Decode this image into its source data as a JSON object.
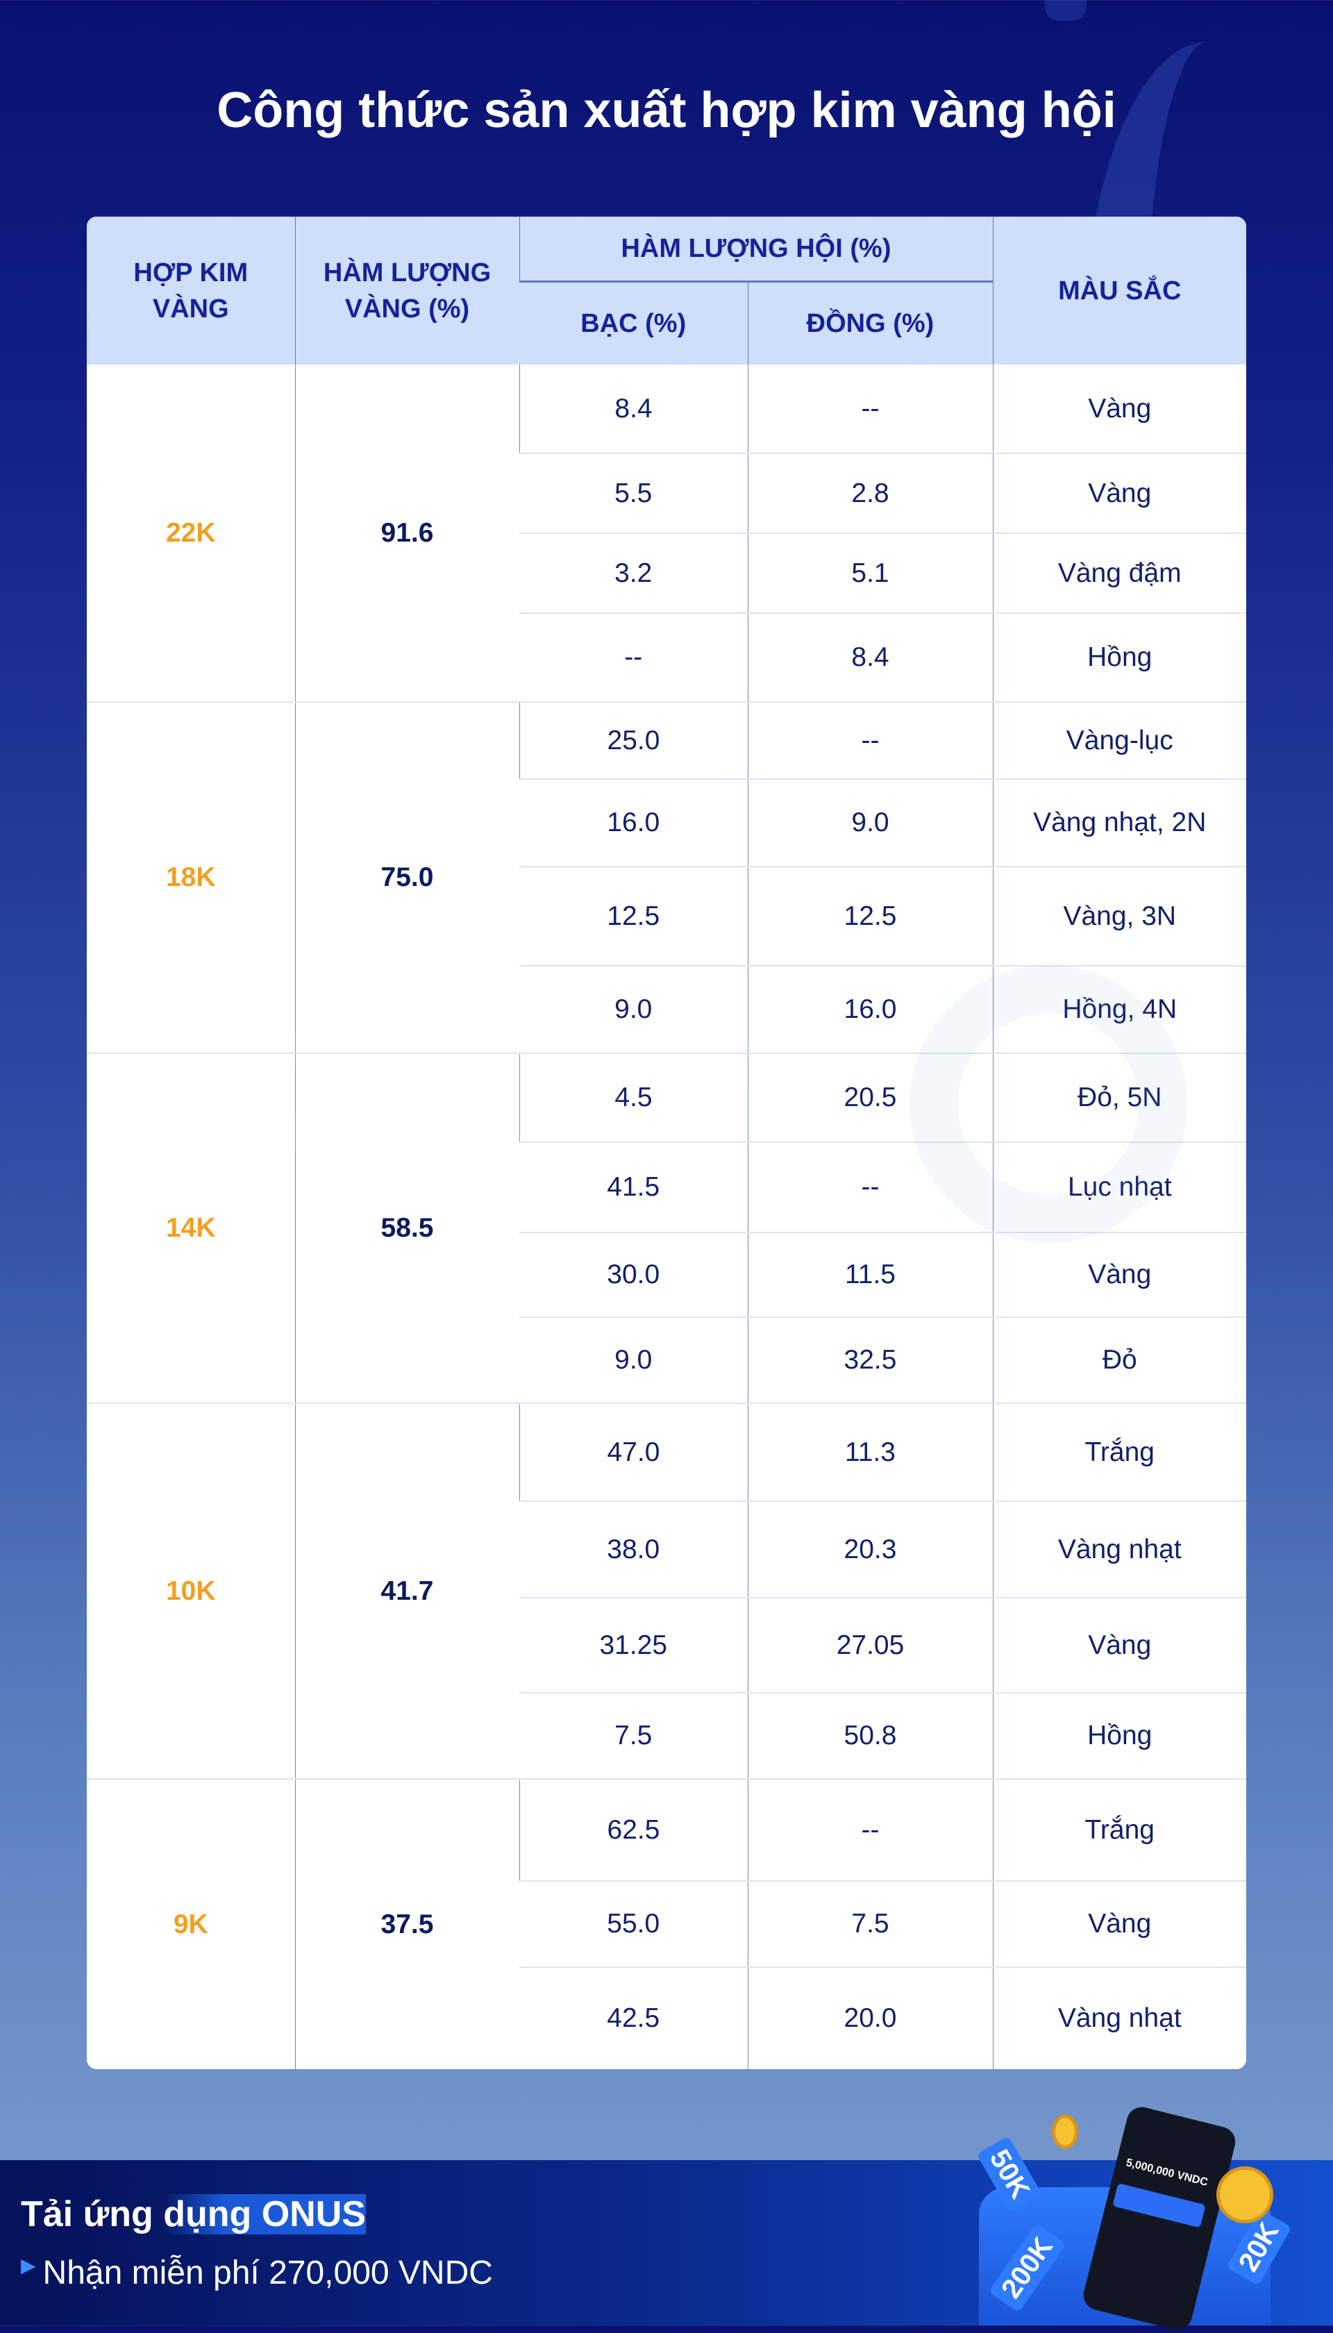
{
  "title": "Công thức sản xuất hợp kim vàng hội",
  "table": {
    "headers": {
      "alloy": "HỢP KIM VÀNG",
      "gold_content": "HÀM LƯỢNG VÀNG (%)",
      "alloy_content": "HÀM LƯỢNG HỘI (%)",
      "silver": "BẠC (%)",
      "copper": "ĐỒNG (%)",
      "color": "MÀU SẮC"
    },
    "groups": [
      {
        "karat": "22K",
        "gold": "91.6",
        "rows": [
          {
            "silver": "8.4",
            "copper": "--",
            "color": "Vàng"
          },
          {
            "silver": "5.5",
            "copper": "2.8",
            "color": "Vàng"
          },
          {
            "silver": "3.2",
            "copper": "5.1",
            "color": "Vàng đậm"
          },
          {
            "silver": "--",
            "copper": "8.4",
            "color": "Hồng"
          }
        ]
      },
      {
        "karat": "18K",
        "gold": "75.0",
        "rows": [
          {
            "silver": "25.0",
            "copper": "--",
            "color": "Vàng-lục"
          },
          {
            "silver": "16.0",
            "copper": "9.0",
            "color": "Vàng nhạt, 2N"
          },
          {
            "silver": "12.5",
            "copper": "12.5",
            "color": "Vàng, 3N"
          },
          {
            "silver": "9.0",
            "copper": "16.0",
            "color": "Hồng, 4N"
          }
        ]
      },
      {
        "karat": "14K",
        "gold": "58.5",
        "rows": [
          {
            "silver": "4.5",
            "copper": "20.5",
            "color": "Đỏ, 5N"
          },
          {
            "silver": "41.5",
            "copper": "--",
            "color": "Lục nhạt"
          },
          {
            "silver": "30.0",
            "copper": "11.5",
            "color": "Vàng"
          },
          {
            "silver": "9.0",
            "copper": "32.5",
            "color": "Đỏ"
          }
        ]
      },
      {
        "karat": "10K",
        "gold": "41.7",
        "rows": [
          {
            "silver": "47.0",
            "copper": "11.3",
            "color": "Trắng"
          },
          {
            "silver": "38.0",
            "copper": "20.3",
            "color": "Vàng nhạt"
          },
          {
            "silver": "31.25",
            "copper": "27.05",
            "color": "Vàng"
          },
          {
            "silver": "7.5",
            "copper": "50.8",
            "color": "Hồng"
          }
        ]
      },
      {
        "karat": "9K",
        "gold": "37.5",
        "rows": [
          {
            "silver": "62.5",
            "copper": "--",
            "color": "Trắng"
          },
          {
            "silver": "55.0",
            "copper": "7.5",
            "color": "Vàng"
          },
          {
            "silver": "42.5",
            "copper": "20.0",
            "color": "Vàng nhạt"
          }
        ]
      }
    ]
  },
  "watermark": "onus",
  "footer": {
    "title_prefix": "Tải ứng ",
    "title_highlight": "dụng ONUS",
    "subtitle": "Nhận miễn phí 270,000 VNDC",
    "phone_balance": "5,000,000 VNDC",
    "tags": [
      "50K",
      "200K",
      "20K"
    ]
  },
  "colors": {
    "accent_karat": "#f0a020",
    "header_bg": "#cfdefb",
    "header_text": "#16229a",
    "text": "#12206a"
  }
}
